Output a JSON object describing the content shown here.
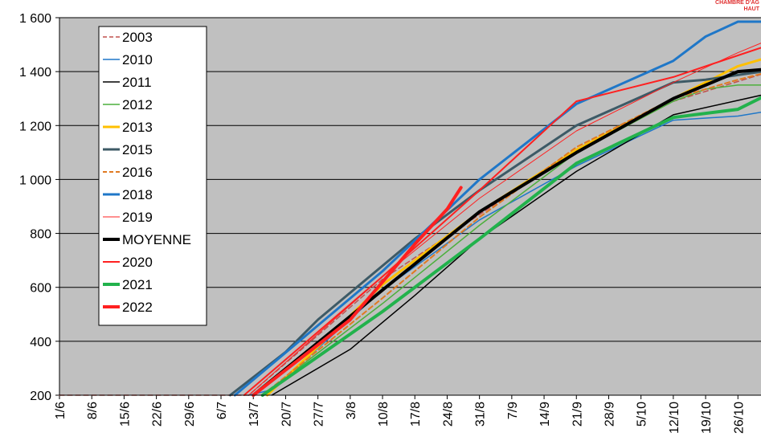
{
  "corner_text": [
    "CHAMBRE D'AG",
    "HAUT"
  ],
  "chart_data": {
    "type": "line",
    "ylim": [
      200,
      1600
    ],
    "yticks": [
      200,
      400,
      600,
      800,
      1000,
      1200,
      1400,
      1600
    ],
    "ytick_labels": [
      "200",
      "400",
      "600",
      "800",
      "1 000",
      "1 200",
      "1 400",
      "1 600"
    ],
    "xlim_day": [
      0,
      152
    ],
    "xtick_labels": [
      "1/6",
      "8/6",
      "15/6",
      "22/6",
      "29/6",
      "6/7",
      "13/7",
      "20/7",
      "27/7",
      "3/8",
      "10/8",
      "17/8",
      "24/8",
      "31/8",
      "7/9",
      "14/9",
      "21/9",
      "28/9",
      "5/10",
      "12/10",
      "19/10",
      "26/10"
    ],
    "grid": true,
    "legend": "top-left",
    "series": [
      {
        "name": "2003",
        "color": "#c0504d",
        "width": 1.5,
        "dash": "6 4",
        "x": [
          "1/6",
          "12/7",
          "10/8",
          "31/8",
          "21/9",
          "12/10",
          "2/11"
        ],
        "y": [
          200,
          200,
          630,
          870,
          1110,
          1290,
          1400
        ]
      },
      {
        "name": "2010",
        "color": "#1f77c8",
        "width": 1.5,
        "dash": "",
        "x": [
          "12/7",
          "17/7",
          "10/8",
          "31/8",
          "21/9",
          "12/10",
          "26/10",
          "2/11"
        ],
        "y": [
          200,
          220,
          590,
          850,
          1050,
          1220,
          1235,
          1255
        ]
      },
      {
        "name": "2011",
        "color": "#000000",
        "width": 1.5,
        "dash": "",
        "x": [
          "17/7",
          "3/8",
          "17/8",
          "31/8",
          "21/9",
          "12/10",
          "2/11"
        ],
        "y": [
          200,
          370,
          570,
          780,
          1030,
          1240,
          1320
        ]
      },
      {
        "name": "2012",
        "color": "#4caf3c",
        "width": 1.5,
        "dash": "",
        "x": [
          "15/7",
          "10/8",
          "31/8",
          "21/9",
          "12/10",
          "19/10",
          "26/10",
          "2/11"
        ],
        "y": [
          200,
          540,
          830,
          1100,
          1290,
          1335,
          1350,
          1350
        ]
      },
      {
        "name": "2013",
        "color": "#ffc000",
        "width": 3,
        "dash": "",
        "x": [
          "16/7",
          "10/8",
          "31/8",
          "21/9",
          "12/10",
          "26/10",
          "2/11"
        ],
        "y": [
          200,
          610,
          880,
          1110,
          1300,
          1420,
          1455
        ]
      },
      {
        "name": "2015",
        "color": "#3d5a66",
        "width": 3,
        "dash": "",
        "x": [
          "8/7",
          "20/7",
          "27/7",
          "17/8",
          "31/8",
          "21/9",
          "12/10",
          "19/10",
          "2/11"
        ],
        "y": [
          200,
          360,
          480,
          780,
          960,
          1200,
          1360,
          1370,
          1405
        ]
      },
      {
        "name": "2016",
        "color": "#e07a22",
        "width": 2,
        "dash": "6 4",
        "x": [
          "15/7",
          "10/8",
          "31/8",
          "21/9",
          "12/10",
          "26/10",
          "2/11"
        ],
        "y": [
          200,
          560,
          860,
          1120,
          1300,
          1370,
          1400
        ]
      },
      {
        "name": "2018",
        "color": "#1f77c8",
        "width": 3,
        "dash": "",
        "x": [
          "9/7",
          "10/8",
          "31/8",
          "21/9",
          "12/10",
          "19/10",
          "26/10",
          "2/11"
        ],
        "y": [
          200,
          660,
          1000,
          1280,
          1440,
          1530,
          1585,
          1585
        ]
      },
      {
        "name": "2019",
        "color": "#ff2020",
        "width": 1,
        "dash": "",
        "x": [
          "12/7",
          "10/8",
          "31/8",
          "21/9",
          "12/10",
          "26/10",
          "2/11"
        ],
        "y": [
          200,
          640,
          930,
          1180,
          1360,
          1470,
          1520
        ]
      },
      {
        "name": "MOYENNE",
        "color": "#000000",
        "width": 4,
        "dash": "",
        "x": [
          "13/7",
          "10/8",
          "31/8",
          "21/9",
          "12/10",
          "26/10",
          "2/11"
        ],
        "y": [
          200,
          590,
          880,
          1100,
          1300,
          1400,
          1410
        ]
      },
      {
        "name": "2020",
        "color": "#ff2020",
        "width": 2,
        "dash": "",
        "x": [
          "11/7",
          "10/8",
          "31/8",
          "21/9",
          "12/10",
          "26/10",
          "2/11"
        ],
        "y": [
          200,
          640,
          960,
          1290,
          1380,
          1460,
          1500
        ]
      },
      {
        "name": "2021",
        "color": "#22b24c",
        "width": 4,
        "dash": "",
        "x": [
          "15/7",
          "10/8",
          "31/8",
          "21/9",
          "12/10",
          "26/10",
          "2/11"
        ],
        "y": [
          200,
          510,
          780,
          1060,
          1230,
          1260,
          1320
        ]
      },
      {
        "name": "2022",
        "color": "#ff2020",
        "width": 4,
        "dash": "",
        "x": [
          "13/7",
          "3/8",
          "17/8",
          "24/8",
          "27/8"
        ],
        "y": [
          200,
          480,
          760,
          890,
          970
        ]
      }
    ]
  }
}
